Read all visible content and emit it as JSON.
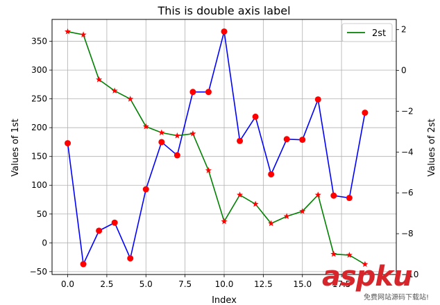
{
  "chart_data": {
    "type": "line",
    "title": "This is double axis label",
    "xlabel": "Index",
    "ylabel_left": "Values of 1st",
    "ylabel_right": "Values of 2st",
    "x": [
      0,
      1,
      2,
      3,
      4,
      5,
      6,
      7,
      8,
      9,
      10,
      11,
      12,
      13,
      14,
      15,
      16,
      17,
      18,
      19,
      20
    ],
    "xlim": [
      -1,
      21
    ],
    "ylim_left": [
      -55,
      388
    ],
    "ylim_right": [
      -10,
      2.5
    ],
    "xticks": [
      "0.0",
      "2.5",
      "5.0",
      "7.5",
      "10.0",
      "12.5",
      "15.0",
      "17.5"
    ],
    "yticks_left": [
      "−50",
      "0",
      "50",
      "100",
      "150",
      "200",
      "250",
      "300",
      "350"
    ],
    "yticks_right": [
      "−10",
      "−8",
      "−6",
      "−4",
      "−2",
      "0",
      "2"
    ],
    "grid": true,
    "legend": "top-right",
    "series": [
      {
        "axis": "left",
        "color": "#0000ff",
        "marker_color": "#ff0000",
        "marker": "circle",
        "values": [
          173,
          -37,
          21,
          35,
          -27,
          93,
          175,
          152,
          262,
          262,
          367,
          177,
          219,
          119,
          180,
          179,
          249,
          82,
          78,
          226,
          null
        ]
      },
      {
        "name": "2st",
        "axis": "right",
        "color": "#008000",
        "marker_color": "#ff0000",
        "marker": "star",
        "values": [
          1.9,
          1.75,
          -0.45,
          -1.0,
          -1.4,
          -2.75,
          -3.05,
          -3.2,
          -3.1,
          -4.9,
          -7.4,
          -6.1,
          -6.55,
          -7.5,
          -7.15,
          -6.9,
          -6.1,
          -9.0,
          -9.05,
          -9.5,
          null
        ]
      }
    ]
  },
  "watermark": {
    "main": "aspku",
    "sub": "免费网站源码下载站!"
  }
}
